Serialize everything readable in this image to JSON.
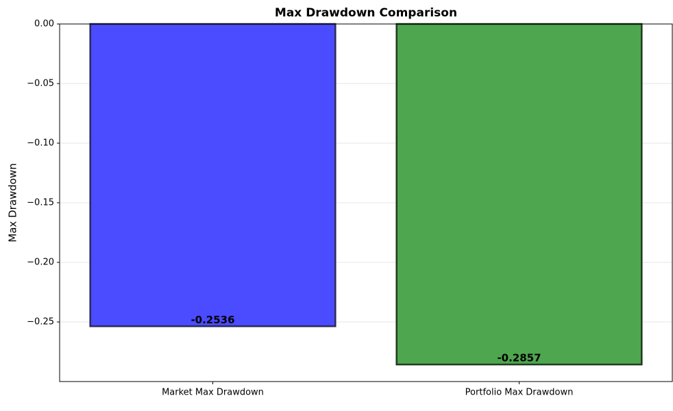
{
  "chart_data": {
    "type": "bar",
    "title": "Max Drawdown Comparison",
    "ylabel": "Max Drawdown",
    "categories": [
      "Market Max Drawdown",
      "Portfolio Max Drawdown"
    ],
    "values": [
      -0.2536,
      -0.2857
    ],
    "colors": [
      "#4b4bff",
      "#4ea64e"
    ],
    "edge_colors": [
      "#2a2a5a",
      "#1f3a1f"
    ],
    "ylim": [
      -0.3,
      0
    ],
    "yticks": [
      {
        "value": 0,
        "label": "0.00"
      },
      {
        "value": -0.05,
        "label": "−0.05"
      },
      {
        "value": -0.1,
        "label": "−0.10"
      },
      {
        "value": -0.15,
        "label": "−0.15"
      },
      {
        "value": -0.2,
        "label": "−0.20"
      },
      {
        "value": -0.25,
        "label": "−0.25"
      }
    ],
    "grid": true
  }
}
